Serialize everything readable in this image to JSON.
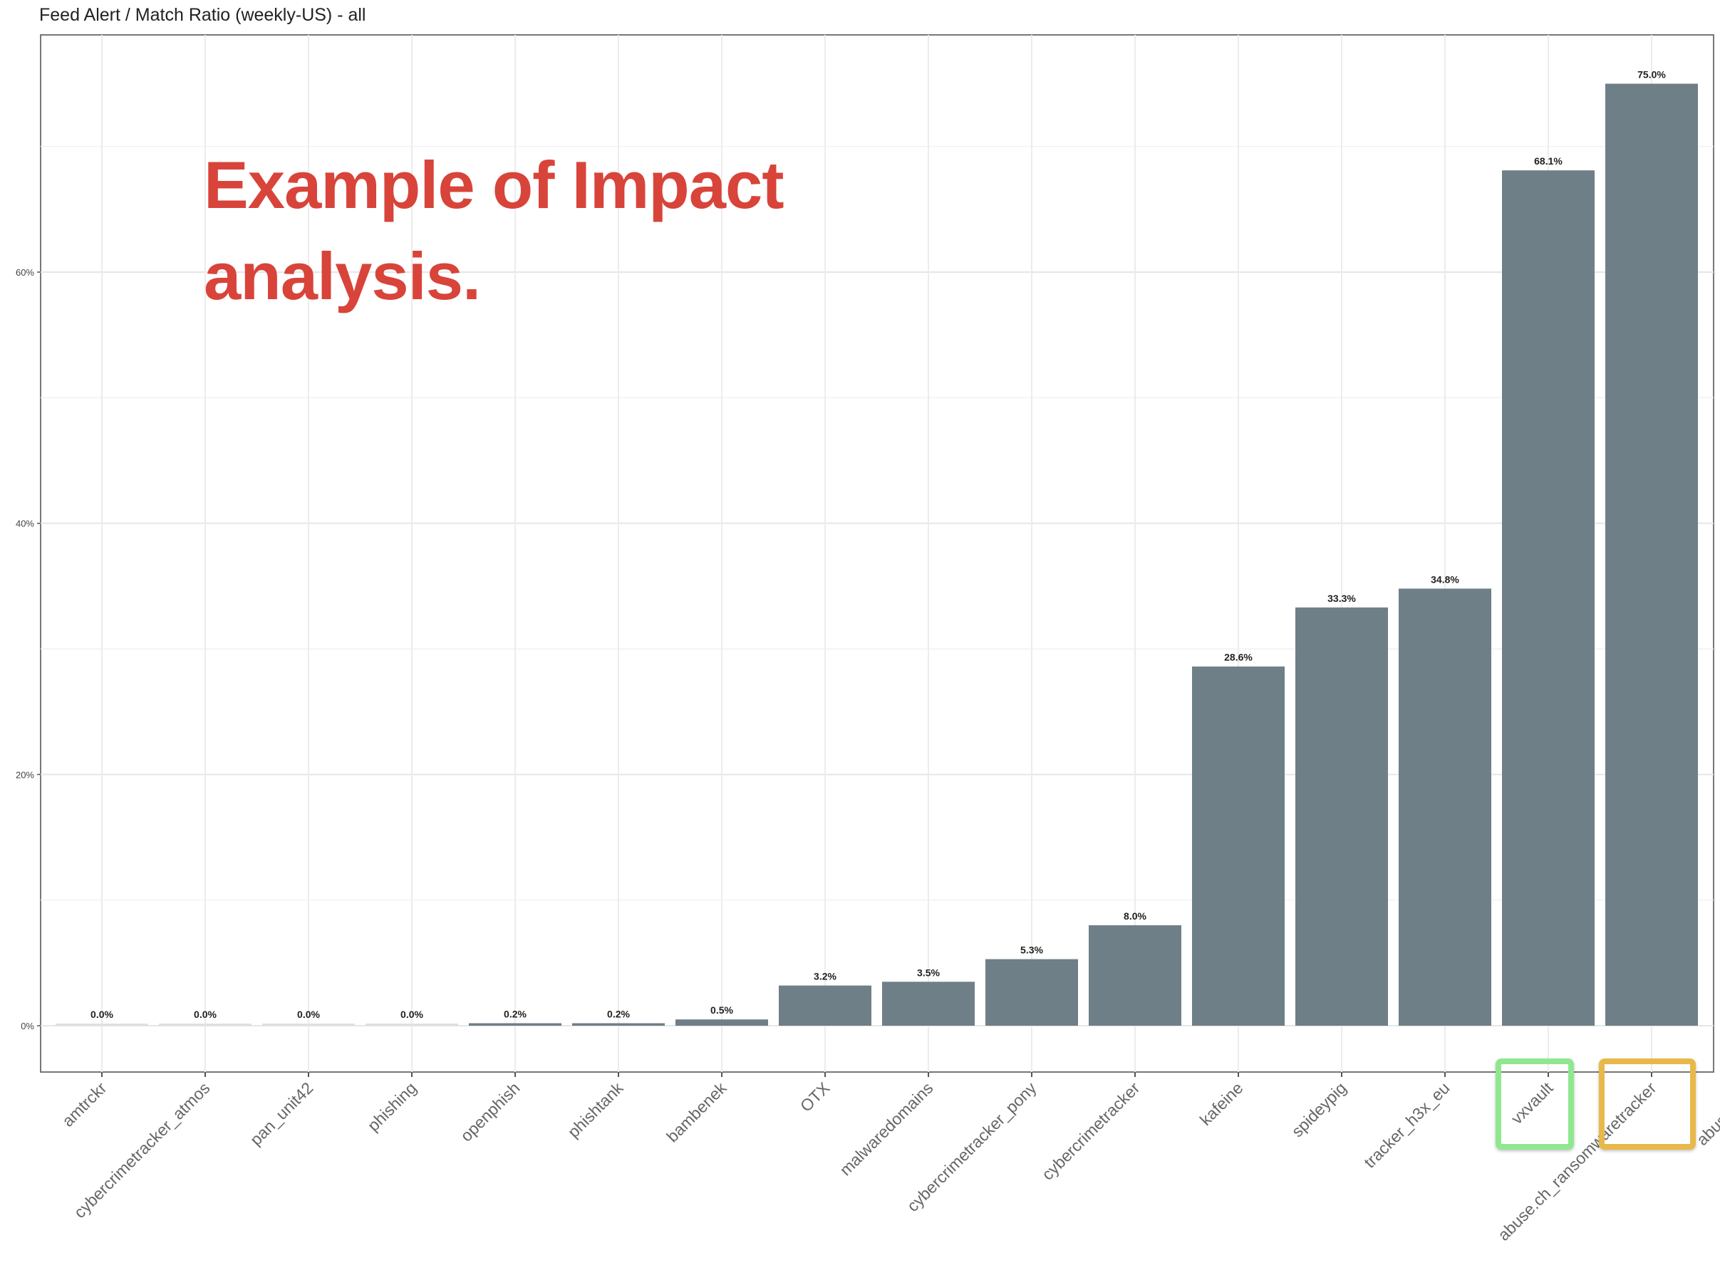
{
  "chart_data": {
    "type": "bar",
    "title": "Feed Alert / Match Ratio (weekly-US) - all",
    "xlabel": "",
    "ylabel": "",
    "ylim": [
      -3.5,
      79
    ],
    "yticks": [
      0,
      20,
      40,
      60
    ],
    "ytick_labels": [
      "0%",
      "20%",
      "40%",
      "60%"
    ],
    "grid": true,
    "categories": [
      "amtrckr",
      "cybercrimetracker_atmos",
      "pan_unit42",
      "phishing",
      "openphish",
      "phishtank",
      "bambenek",
      "OTX",
      "malwaredomains",
      "cybercrimetracker_pony",
      "cybercrimetracker",
      "kafeine",
      "spideypig",
      "tracker_h3x_eu",
      "vxvault",
      "abuse.ch_ransomwaretracker"
    ],
    "values": [
      0.0,
      0.0,
      0.0,
      0.0,
      0.2,
      0.2,
      0.5,
      3.2,
      3.5,
      5.3,
      8.0,
      28.6,
      33.3,
      34.8,
      68.1,
      75.0
    ],
    "data_labels": [
      "0.0%",
      "0.0%",
      "0.0%",
      "0.0%",
      "0.2%",
      "0.2%",
      "0.5%",
      "3.2%",
      "3.5%",
      "5.3%",
      "8.0%",
      "28.6%",
      "33.3%",
      "34.8%",
      "68.1%",
      "75.0%"
    ],
    "clipped_label": "abuse.ch_r",
    "bar_color": "#6f7f87"
  },
  "annotation": {
    "line1": "Example of Impact",
    "line2": "analysis.",
    "color": "#d8443a"
  },
  "highlights": [
    {
      "category": "vxvault",
      "color": "#8fe88f"
    },
    {
      "category": "abuse.ch_ransomwaretracker",
      "color": "#e8b94a"
    }
  ]
}
